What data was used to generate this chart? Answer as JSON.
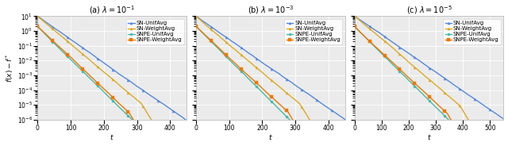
{
  "subplots": [
    {
      "title": "(a) $\\lambda = 10^{-1}$",
      "xlabel": "$t$",
      "ylabel": "$f(x) - f^*$",
      "xlim": [
        0,
        450
      ],
      "xticks": [
        0,
        100,
        200,
        300,
        400
      ],
      "ylim_log": [
        -6,
        1
      ],
      "n_points": 90,
      "x_max": 450,
      "curves": {
        "SN-UnifAvg": {
          "color": "#5588DD",
          "marker": "^",
          "lw": 1.0
        },
        "SN-WeightAvg": {
          "color": "#DDAA22",
          "marker": "^",
          "lw": 1.0
        },
        "SNPE-UnifAvg": {
          "color": "#44BBAA",
          "marker": "o",
          "lw": 1.0
        },
        "SNPE-WeightAvg": {
          "color": "#EE7700",
          "marker": "s",
          "lw": 1.0
        }
      }
    },
    {
      "title": "(b) $\\lambda = 10^{-3}$",
      "xlabel": "$t$",
      "ylabel": "$f(x) - f^*$",
      "xlim": [
        0,
        450
      ],
      "xticks": [
        0,
        100,
        200,
        300,
        400
      ],
      "ylim_log": [
        -6,
        1
      ],
      "n_points": 90,
      "x_max": 450,
      "curves": {
        "SN-UnifAvg": {
          "color": "#5588DD",
          "marker": "^",
          "lw": 1.0
        },
        "SN-WeightAvg": {
          "color": "#DDAA22",
          "marker": "^",
          "lw": 1.0
        },
        "SNPE-UnifAvg": {
          "color": "#44BBAA",
          "marker": "o",
          "lw": 1.0
        },
        "SNPE-WeightAvg": {
          "color": "#EE7700",
          "marker": "s",
          "lw": 1.0
        }
      }
    },
    {
      "title": "(c) $\\lambda = 10^{-5}$",
      "xlabel": "$t$",
      "ylabel": "$f(x) - f^*$",
      "xlim": [
        0,
        550
      ],
      "xticks": [
        0,
        100,
        200,
        300,
        400,
        500
      ],
      "ylim_log": [
        -6,
        1
      ],
      "n_points": 110,
      "x_max": 550,
      "curves": {
        "SN-UnifAvg": {
          "color": "#5588DD",
          "marker": "^",
          "lw": 1.0
        },
        "SN-WeightAvg": {
          "color": "#DDAA22",
          "marker": "^",
          "lw": 1.0
        },
        "SNPE-UnifAvg": {
          "color": "#44BBAA",
          "marker": "o",
          "lw": 1.0
        },
        "SNPE-WeightAvg": {
          "color": "#EE7700",
          "marker": "s",
          "lw": 1.0
        }
      }
    }
  ],
  "bg_color": "#EBEBEB",
  "grid_color": "#FFFFFF",
  "fontsize_title": 7,
  "fontsize_tick": 5.5,
  "fontsize_label": 6.5,
  "fontsize_legend": 5.0
}
